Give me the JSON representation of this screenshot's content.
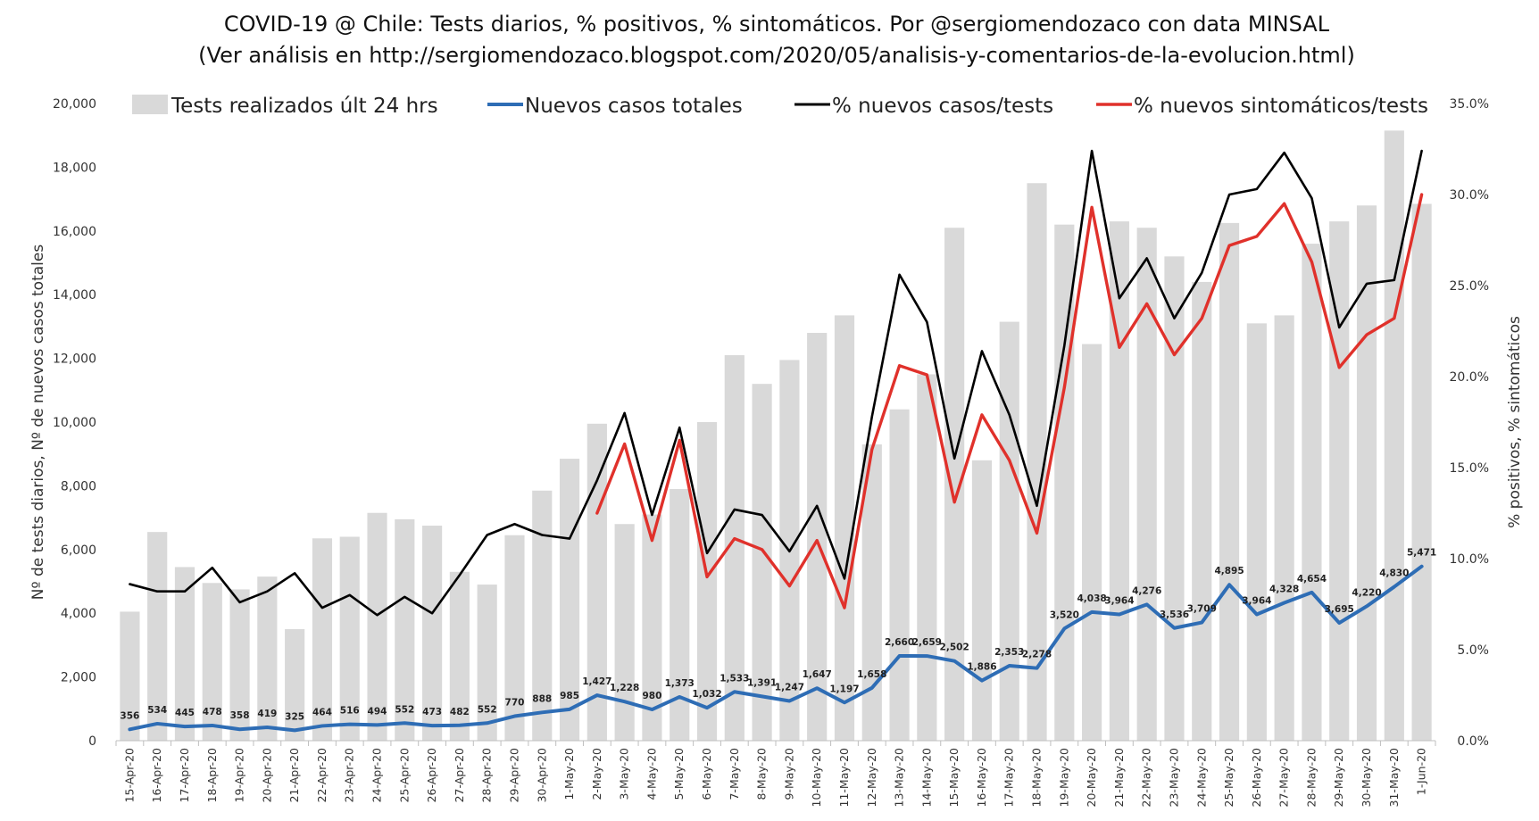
{
  "title": {
    "line1": "COVID-19 @ Chile: Tests diarios, % positivos, % sintomáticos. Por @sergiomendozaco con data MINSAL",
    "line2": "(Ver análisis en http://sergiomendozaco.blogspot.com/2020/05/analisis-y-comentarios-de-la-evolucion.html)"
  },
  "legend": {
    "bars": "Tests realizados últ 24 hrs",
    "cases": "Nuevos casos totales",
    "pos_rate": "% nuevos casos/tests",
    "symp_rate": "% nuevos sintomáticos/tests"
  },
  "colors": {
    "bars": "#d9d9d9",
    "cases": "#2e6db5",
    "pos_rate": "#000000",
    "symp_rate": "#e0312b"
  },
  "chart_data": {
    "type": "bar",
    "xlabel": "",
    "ylabel": "Nº de tests diarios, Nº de nuevos casos totales",
    "y2label": "% positivos, % sintomáticos",
    "ylim": [
      0,
      20000
    ],
    "y2lim": [
      0,
      35
    ],
    "y_ticks": [
      "0",
      "2,000",
      "4,000",
      "6,000",
      "8,000",
      "10,000",
      "12,000",
      "14,000",
      "16,000",
      "18,000",
      "20,000"
    ],
    "y2_ticks": [
      "0.0%",
      "5.0%",
      "10.0%",
      "15.0%",
      "20.0%",
      "25.0%",
      "30.0%",
      "35.0%"
    ],
    "legend_position": "top",
    "grid": false,
    "categories": [
      "15-Apr-20",
      "16-Apr-20",
      "17-Apr-20",
      "18-Apr-20",
      "19-Apr-20",
      "20-Apr-20",
      "21-Apr-20",
      "22-Apr-20",
      "23-Apr-20",
      "24-Apr-20",
      "25-Apr-20",
      "26-Apr-20",
      "27-Apr-20",
      "28-Apr-20",
      "29-Apr-20",
      "30-Apr-20",
      "1-May-20",
      "2-May-20",
      "3-May-20",
      "4-May-20",
      "5-May-20",
      "6-May-20",
      "7-May-20",
      "8-May-20",
      "9-May-20",
      "10-May-20",
      "11-May-20",
      "12-May-20",
      "13-May-20",
      "14-May-20",
      "15-May-20",
      "16-May-20",
      "17-May-20",
      "18-May-20",
      "19-May-20",
      "20-May-20",
      "21-May-20",
      "22-May-20",
      "23-May-20",
      "24-May-20",
      "25-May-20",
      "26-May-20",
      "27-May-20",
      "28-May-20",
      "29-May-20",
      "30-May-20",
      "31-May-20",
      "1-Jun-20"
    ],
    "series": [
      {
        "name": "Tests realizados últ 24 hrs",
        "type": "bar",
        "axis": "left",
        "values": [
          4050,
          6550,
          5450,
          4950,
          4750,
          5150,
          3500,
          6350,
          6400,
          7150,
          6950,
          6750,
          5300,
          4900,
          6450,
          7850,
          8850,
          9950,
          6800,
          7100,
          7900,
          10000,
          12100,
          11200,
          11950,
          12800,
          13350,
          9300,
          10400,
          11500,
          16100,
          8800,
          13150,
          17500,
          16200,
          12450,
          16300,
          16100,
          15200,
          14400,
          16250,
          13100,
          13350,
          15600,
          16300,
          16800,
          19150,
          16850
        ]
      },
      {
        "name": "Nuevos casos totales",
        "type": "line",
        "axis": "left",
        "values": [
          356,
          534,
          445,
          478,
          358,
          419,
          325,
          464,
          516,
          494,
          552,
          473,
          482,
          552,
          770,
          888,
          985,
          1427,
          1228,
          980,
          1373,
          1032,
          1533,
          1391,
          1247,
          1647,
          1197,
          1658,
          2660,
          2659,
          2502,
          1886,
          2353,
          2278,
          3520,
          4038,
          3964,
          4276,
          3536,
          3709,
          4895,
          3964,
          4328,
          4654,
          3695,
          4220,
          4830,
          5471
        ],
        "labels": [
          "356",
          "534",
          "445",
          "478",
          "358",
          "419",
          "325",
          "464",
          "516",
          "494",
          "552",
          "473",
          "482",
          "552",
          "770",
          "888",
          "985",
          "1,427",
          "1,228",
          "980",
          "1,373",
          "1,032",
          "1,533",
          "1,391",
          "1,247",
          "1,647",
          "1,197",
          "1,658",
          "2,660",
          "2,659",
          "2,502",
          "1,886",
          "2,353",
          "2,278",
          "3,520",
          "4,038",
          "3,964",
          "4,276",
          "3,536",
          "3,709",
          "4,895",
          "3,964",
          "4,328",
          "4,654",
          "3,695",
          "4,220",
          "4,830",
          "5,471"
        ]
      },
      {
        "name": "% nuevos casos/tests",
        "type": "line",
        "axis": "right",
        "values": [
          8.6,
          8.2,
          8.2,
          9.5,
          7.6,
          8.2,
          9.2,
          7.3,
          8.0,
          6.9,
          7.9,
          7.0,
          9.1,
          11.3,
          11.9,
          11.3,
          11.1,
          14.3,
          18.0,
          12.4,
          17.2,
          10.3,
          12.7,
          12.4,
          10.4,
          12.9,
          8.9,
          17.8,
          25.6,
          23.0,
          15.5,
          21.4,
          17.9,
          12.9,
          21.7,
          32.4,
          24.3,
          26.5,
          23.2,
          25.7,
          30.0,
          30.3,
          32.3,
          29.8,
          22.7,
          25.1,
          25.3,
          32.4
        ]
      },
      {
        "name": "% nuevos sintomáticos/tests",
        "type": "line",
        "axis": "right",
        "values": [
          null,
          null,
          null,
          null,
          null,
          null,
          null,
          null,
          null,
          null,
          null,
          null,
          null,
          null,
          null,
          null,
          null,
          12.5,
          16.3,
          11.0,
          16.5,
          9.0,
          11.1,
          10.5,
          8.5,
          11.0,
          7.3,
          16.0,
          20.6,
          20.1,
          13.1,
          17.9,
          15.4,
          11.4,
          19.4,
          29.3,
          21.6,
          24.0,
          21.2,
          23.2,
          27.2,
          27.7,
          29.5,
          26.3,
          20.5,
          22.3,
          23.2,
          30.0
        ]
      }
    ]
  }
}
